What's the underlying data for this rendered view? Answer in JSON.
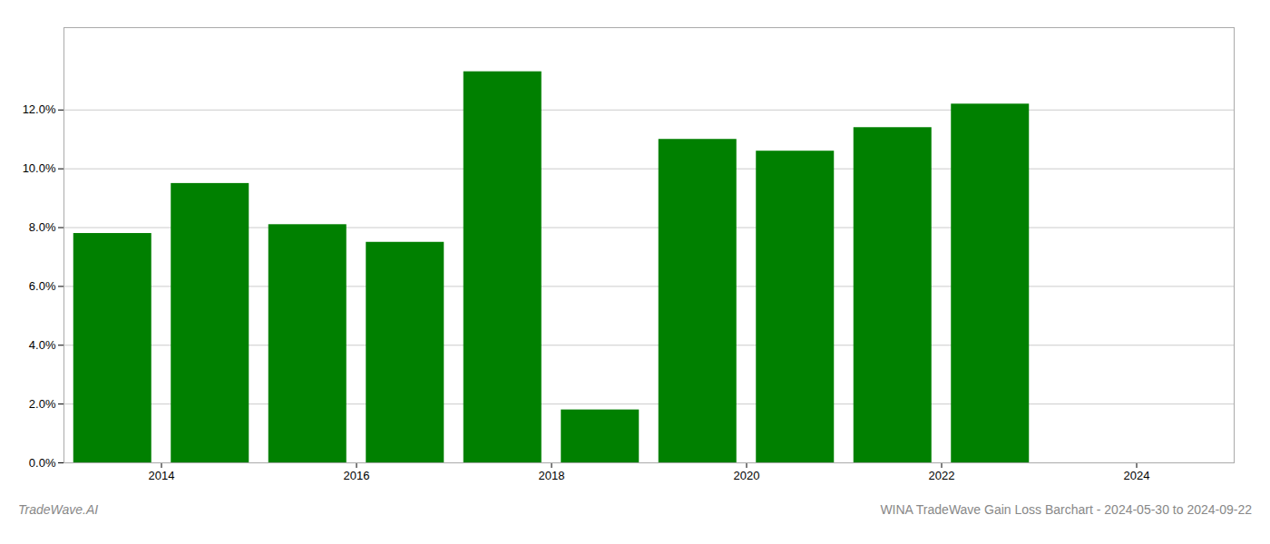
{
  "chart_data": {
    "type": "bar",
    "x": [
      2013,
      2014,
      2015,
      2016,
      2017,
      2018,
      2019,
      2020,
      2021,
      2022
    ],
    "values": [
      0.078,
      0.095,
      0.081,
      0.075,
      0.133,
      0.018,
      0.11,
      0.106,
      0.114,
      0.122
    ],
    "color": "#008000",
    "xlim": [
      2012.5,
      2024.5
    ],
    "xticks": [
      {
        "value": 2013.5,
        "label": "2014"
      },
      {
        "value": 2015.5,
        "label": "2016"
      },
      {
        "value": 2017.5,
        "label": "2018"
      },
      {
        "value": 2019.5,
        "label": "2020"
      },
      {
        "value": 2021.5,
        "label": "2022"
      },
      {
        "value": 2023.5,
        "label": "2024"
      }
    ],
    "ylim": [
      0,
      0.148
    ],
    "yticks": [
      {
        "value": 0.0,
        "label": "0.0%"
      },
      {
        "value": 0.02,
        "label": "2.0%"
      },
      {
        "value": 0.04,
        "label": "4.0%"
      },
      {
        "value": 0.06,
        "label": "6.0%"
      },
      {
        "value": 0.08,
        "label": "8.0%"
      },
      {
        "value": 0.1,
        "label": "10.0%"
      },
      {
        "value": 0.12,
        "label": "12.0%"
      }
    ],
    "grid": true,
    "annotations": [
      "TradeWave.AI",
      "WINA TradeWave Gain Loss Barchart - 2024-05-30 to 2024-09-22"
    ]
  }
}
